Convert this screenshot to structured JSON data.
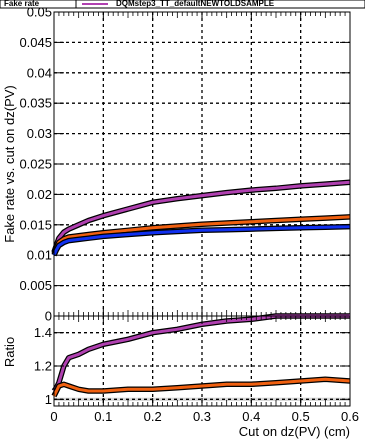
{
  "header": {
    "title_label": "Fake rate",
    "legend_label": "DQMstep3_TT_defaultNEWTOLDSAMPLE"
  },
  "colors": {
    "frame": "#000000",
    "purple": "#b040b0",
    "orange": "#f06010",
    "blue": "#1030f0",
    "ratio_band": "#d8d8d8"
  },
  "chart_data": [
    {
      "type": "line",
      "panel": "top",
      "title": "",
      "xlabel": "",
      "ylabel": "Fake rate vs. cut on dz(PV)",
      "xlim": [
        0,
        0.6
      ],
      "ylim": [
        0,
        0.05
      ],
      "grid": true,
      "y_ticks": [
        "0",
        "0.005",
        "0.01",
        "0.015",
        "0.02",
        "0.025",
        "0.03",
        "0.035",
        "0.04",
        "0.045",
        "0.05"
      ],
      "x": [
        0.0,
        0.005,
        0.01,
        0.02,
        0.03,
        0.05,
        0.07,
        0.1,
        0.15,
        0.2,
        0.25,
        0.3,
        0.35,
        0.4,
        0.45,
        0.5,
        0.55,
        0.6
      ],
      "series": [
        {
          "name": "",
          "color": "purple",
          "values": [
            0.0105,
            0.0117,
            0.0128,
            0.0138,
            0.0143,
            0.015,
            0.0157,
            0.0165,
            0.0176,
            0.0187,
            0.0193,
            0.0198,
            0.0203,
            0.0207,
            0.021,
            0.0214,
            0.0217,
            0.022
          ]
        },
        {
          "name": "",
          "color": "orange",
          "values": [
            0.0103,
            0.0113,
            0.0121,
            0.0127,
            0.013,
            0.0132,
            0.0134,
            0.0137,
            0.0141,
            0.0145,
            0.0148,
            0.0151,
            0.0153,
            0.0155,
            0.0157,
            0.0159,
            0.0161,
            0.0163
          ]
        },
        {
          "name": "",
          "color": "blue",
          "values": [
            0.01,
            0.0109,
            0.0116,
            0.0121,
            0.0124,
            0.0126,
            0.0128,
            0.0131,
            0.0134,
            0.0137,
            0.0139,
            0.0141,
            0.0142,
            0.0143,
            0.0144,
            0.0145,
            0.0146,
            0.0147
          ]
        }
      ]
    },
    {
      "type": "line",
      "panel": "ratio",
      "title": "",
      "xlabel": "Cut on dz(PV) (cm)",
      "ylabel": "Ratio",
      "xlim": [
        0,
        0.6
      ],
      "ylim": [
        0.96,
        1.5
      ],
      "grid": true,
      "x_ticks": [
        "0",
        "0.1",
        "0.2",
        "0.3",
        "0.4",
        "0.5",
        "0.6"
      ],
      "y_ticks": [
        "1",
        "1.2",
        "1.4"
      ],
      "reference_line": 1.0,
      "x": [
        0.0,
        0.005,
        0.01,
        0.02,
        0.03,
        0.05,
        0.07,
        0.1,
        0.15,
        0.2,
        0.25,
        0.3,
        0.35,
        0.4,
        0.45,
        0.5,
        0.55,
        0.6
      ],
      "series": [
        {
          "name": "",
          "color": "purple",
          "values": [
            1.05,
            1.07,
            1.1,
            1.2,
            1.25,
            1.27,
            1.3,
            1.33,
            1.36,
            1.4,
            1.42,
            1.45,
            1.47,
            1.48,
            1.5,
            1.51,
            1.52,
            1.53
          ]
        },
        {
          "name": "",
          "color": "orange",
          "values": [
            1.02,
            1.05,
            1.08,
            1.09,
            1.08,
            1.06,
            1.05,
            1.05,
            1.06,
            1.06,
            1.07,
            1.08,
            1.09,
            1.09,
            1.1,
            1.11,
            1.12,
            1.11
          ]
        }
      ]
    }
  ]
}
